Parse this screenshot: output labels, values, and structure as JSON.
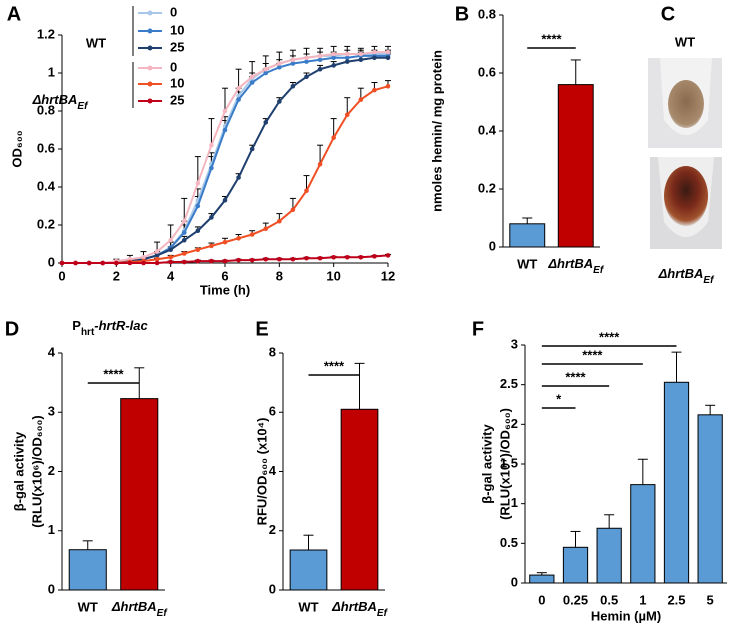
{
  "chart_data": [
    {
      "type": "line",
      "panel_label": "A",
      "x_label": "Time (h)",
      "y_label": "OD₆₀₀",
      "x": [
        0,
        0.5,
        1,
        1.5,
        2,
        2.5,
        3,
        3.5,
        4,
        4.5,
        5,
        5.5,
        6,
        6.5,
        7,
        7.5,
        8,
        8.5,
        9,
        9.5,
        10,
        10.5,
        11,
        11.5,
        12
      ],
      "xlim": [
        0,
        12
      ],
      "xticks": [
        0,
        2,
        4,
        6,
        8,
        10,
        12
      ],
      "ylim": [
        0,
        1.2
      ],
      "yticks": [
        0,
        0.2,
        0.4,
        0.6,
        0.8,
        1,
        1.2
      ],
      "legend_groups": [
        "WT",
        {
          "text": "ΔhrtBA",
          "sub": "Ef"
        }
      ],
      "series": [
        {
          "name": "0",
          "color": "#a9c8e8",
          "values": [
            0,
            0,
            0,
            0,
            0.005,
            0.01,
            0.02,
            0.04,
            0.08,
            0.17,
            0.33,
            0.52,
            0.72,
            0.88,
            0.97,
            1.02,
            1.05,
            1.07,
            1.08,
            1.09,
            1.09,
            1.1,
            1.1,
            1.1,
            1.1
          ],
          "errors": [
            0,
            0,
            0,
            0,
            0.005,
            0.01,
            0.01,
            0.02,
            0.03,
            0.05,
            0.06,
            0.06,
            0.05,
            0.04,
            0.03,
            0.03,
            0.02,
            0.02,
            0.02,
            0.02,
            0.02,
            0.02,
            0.02,
            0.02,
            0.02
          ]
        },
        {
          "name": "10",
          "color": "#3a7cc9",
          "values": [
            0,
            0,
            0,
            0,
            0.005,
            0.01,
            0.02,
            0.04,
            0.08,
            0.16,
            0.3,
            0.5,
            0.7,
            0.86,
            0.95,
            1,
            1.03,
            1.05,
            1.06,
            1.07,
            1.08,
            1.08,
            1.09,
            1.09,
            1.09
          ],
          "errors": [
            0,
            0,
            0,
            0,
            0.005,
            0.01,
            0.01,
            0.02,
            0.03,
            0.04,
            0.05,
            0.06,
            0.05,
            0.04,
            0.03,
            0.02,
            0.02,
            0.02,
            0.02,
            0.02,
            0.02,
            0.02,
            0.02,
            0.02,
            0.02
          ]
        },
        {
          "name": "25",
          "color": "#1f3f6e",
          "values": [
            0,
            0,
            0,
            0,
            0,
            0.01,
            0.02,
            0.04,
            0.07,
            0.12,
            0.17,
            0.24,
            0.33,
            0.45,
            0.6,
            0.74,
            0.85,
            0.93,
            0.98,
            1.02,
            1.04,
            1.06,
            1.07,
            1.08,
            1.08
          ],
          "errors": [
            0,
            0,
            0,
            0,
            0,
            0.005,
            0.01,
            0.01,
            0.015,
            0.02,
            0.02,
            0.02,
            0.02,
            0.02,
            0.02,
            0.02,
            0.02,
            0.02,
            0.02,
            0.02,
            0.02,
            0.02,
            0.02,
            0.02,
            0.02
          ]
        },
        {
          "name": "0",
          "color": "#f4b6c0",
          "values": [
            0,
            0,
            0,
            0,
            0.01,
            0.02,
            0.03,
            0.06,
            0.12,
            0.22,
            0.42,
            0.62,
            0.8,
            0.92,
            0.98,
            1.02,
            1.05,
            1.07,
            1.08,
            1.09,
            1.1,
            1.1,
            1.1,
            1.11,
            1.11
          ],
          "errors": [
            0,
            0,
            0,
            0,
            0.01,
            0.02,
            0.03,
            0.05,
            0.08,
            0.12,
            0.14,
            0.14,
            0.12,
            0.1,
            0.08,
            0.07,
            0.06,
            0.05,
            0.05,
            0.04,
            0.04,
            0.04,
            0.03,
            0.03,
            0.03
          ]
        },
        {
          "name": "10",
          "color": "#f04e23",
          "values": [
            0,
            0,
            0,
            0,
            0,
            0.005,
            0.01,
            0.02,
            0.03,
            0.05,
            0.07,
            0.09,
            0.11,
            0.13,
            0.15,
            0.18,
            0.22,
            0.28,
            0.38,
            0.52,
            0.66,
            0.78,
            0.86,
            0.91,
            0.93
          ],
          "errors": [
            0,
            0,
            0,
            0,
            0,
            0,
            0.005,
            0.005,
            0.01,
            0.01,
            0.01,
            0.015,
            0.02,
            0.02,
            0.02,
            0.03,
            0.04,
            0.06,
            0.08,
            0.1,
            0.1,
            0.09,
            0.06,
            0.04,
            0.03
          ]
        },
        {
          "name": "25",
          "color": "#c0001a",
          "values": [
            0,
            0,
            0,
            0,
            0,
            0,
            0,
            0,
            0.005,
            0.005,
            0.01,
            0.01,
            0.01,
            0.015,
            0.015,
            0.02,
            0.02,
            0.02,
            0.025,
            0.025,
            0.03,
            0.03,
            0.03,
            0.035,
            0.04
          ],
          "errors": [
            0,
            0,
            0,
            0,
            0,
            0,
            0,
            0,
            0.005,
            0.005,
            0.005,
            0.005,
            0.005,
            0.005,
            0.005,
            0.005,
            0.005,
            0.005,
            0.005,
            0.005,
            0.005,
            0.005,
            0.005,
            0.005,
            0.005
          ]
        }
      ]
    },
    {
      "type": "bar",
      "panel_label": "B",
      "y_label": [
        "nmoles hemin/ mg protein"
      ],
      "categories": [
        "WT",
        {
          "text": "ΔhrtBA",
          "sub": "Ef"
        }
      ],
      "values": [
        0.08,
        0.56
      ],
      "errors": [
        0.02,
        0.085
      ],
      "colors": [
        "#5b9bd5",
        "#c00000"
      ],
      "ylim": [
        0,
        0.8
      ],
      "yticks": [
        0,
        0.2,
        0.4,
        0.6,
        0.8
      ],
      "annotations": [
        "****"
      ]
    },
    {
      "type": "bar",
      "panel_label": "D",
      "title": {
        "text": "P",
        "sub": "hrt",
        "tail": "-hrtR-lac"
      },
      "y_label": [
        "β-gal activity",
        "(RLU(x10⁶)/OD₆₀₀)"
      ],
      "categories": [
        "WT",
        {
          "text": "ΔhrtBA",
          "sub": "Ef"
        }
      ],
      "values": [
        0.68,
        3.23
      ],
      "errors": [
        0.15,
        0.52
      ],
      "colors": [
        "#5b9bd5",
        "#c00000"
      ],
      "ylim": [
        0,
        4
      ],
      "yticks": [
        0,
        1,
        2,
        3,
        4
      ],
      "annotations": [
        "****"
      ]
    },
    {
      "type": "bar",
      "panel_label": "E",
      "y_label": [
        "RFU/OD₆₀₀ (x10⁴)"
      ],
      "categories": [
        "WT",
        {
          "text": "ΔhrtBA",
          "sub": "Ef"
        }
      ],
      "values": [
        1.35,
        6.1
      ],
      "errors": [
        0.5,
        1.55
      ],
      "colors": [
        "#5b9bd5",
        "#c00000"
      ],
      "ylim": [
        0,
        8
      ],
      "yticks": [
        0,
        2,
        4,
        6,
        8
      ],
      "annotations": [
        "****"
      ]
    },
    {
      "type": "bar",
      "panel_label": "F",
      "x_label": "Hemin (µM)",
      "y_label": [
        "β-gal activity",
        "(RLU(x10⁷)/OD₆₀₀)"
      ],
      "categories": [
        "0",
        "0.25",
        "0.5",
        "1",
        "2.5",
        "5"
      ],
      "values": [
        0.1,
        0.45,
        0.69,
        1.24,
        2.53,
        2.12
      ],
      "errors": [
        0.03,
        0.2,
        0.17,
        0.32,
        0.38,
        0.12
      ],
      "colors": [
        "#5b9bd5",
        "#5b9bd5",
        "#5b9bd5",
        "#5b9bd5",
        "#5b9bd5",
        "#5b9bd5"
      ],
      "ylim": [
        0,
        3
      ],
      "yticks": [
        0,
        0.5,
        1,
        1.5,
        2,
        2.5,
        3
      ],
      "annotations": [
        "*",
        "****",
        "****",
        "****"
      ]
    }
  ],
  "photo_panel": {
    "panel_label": "C",
    "labels": [
      "WT",
      {
        "text": "ΔhrtBA",
        "sub": "Ef"
      }
    ]
  }
}
